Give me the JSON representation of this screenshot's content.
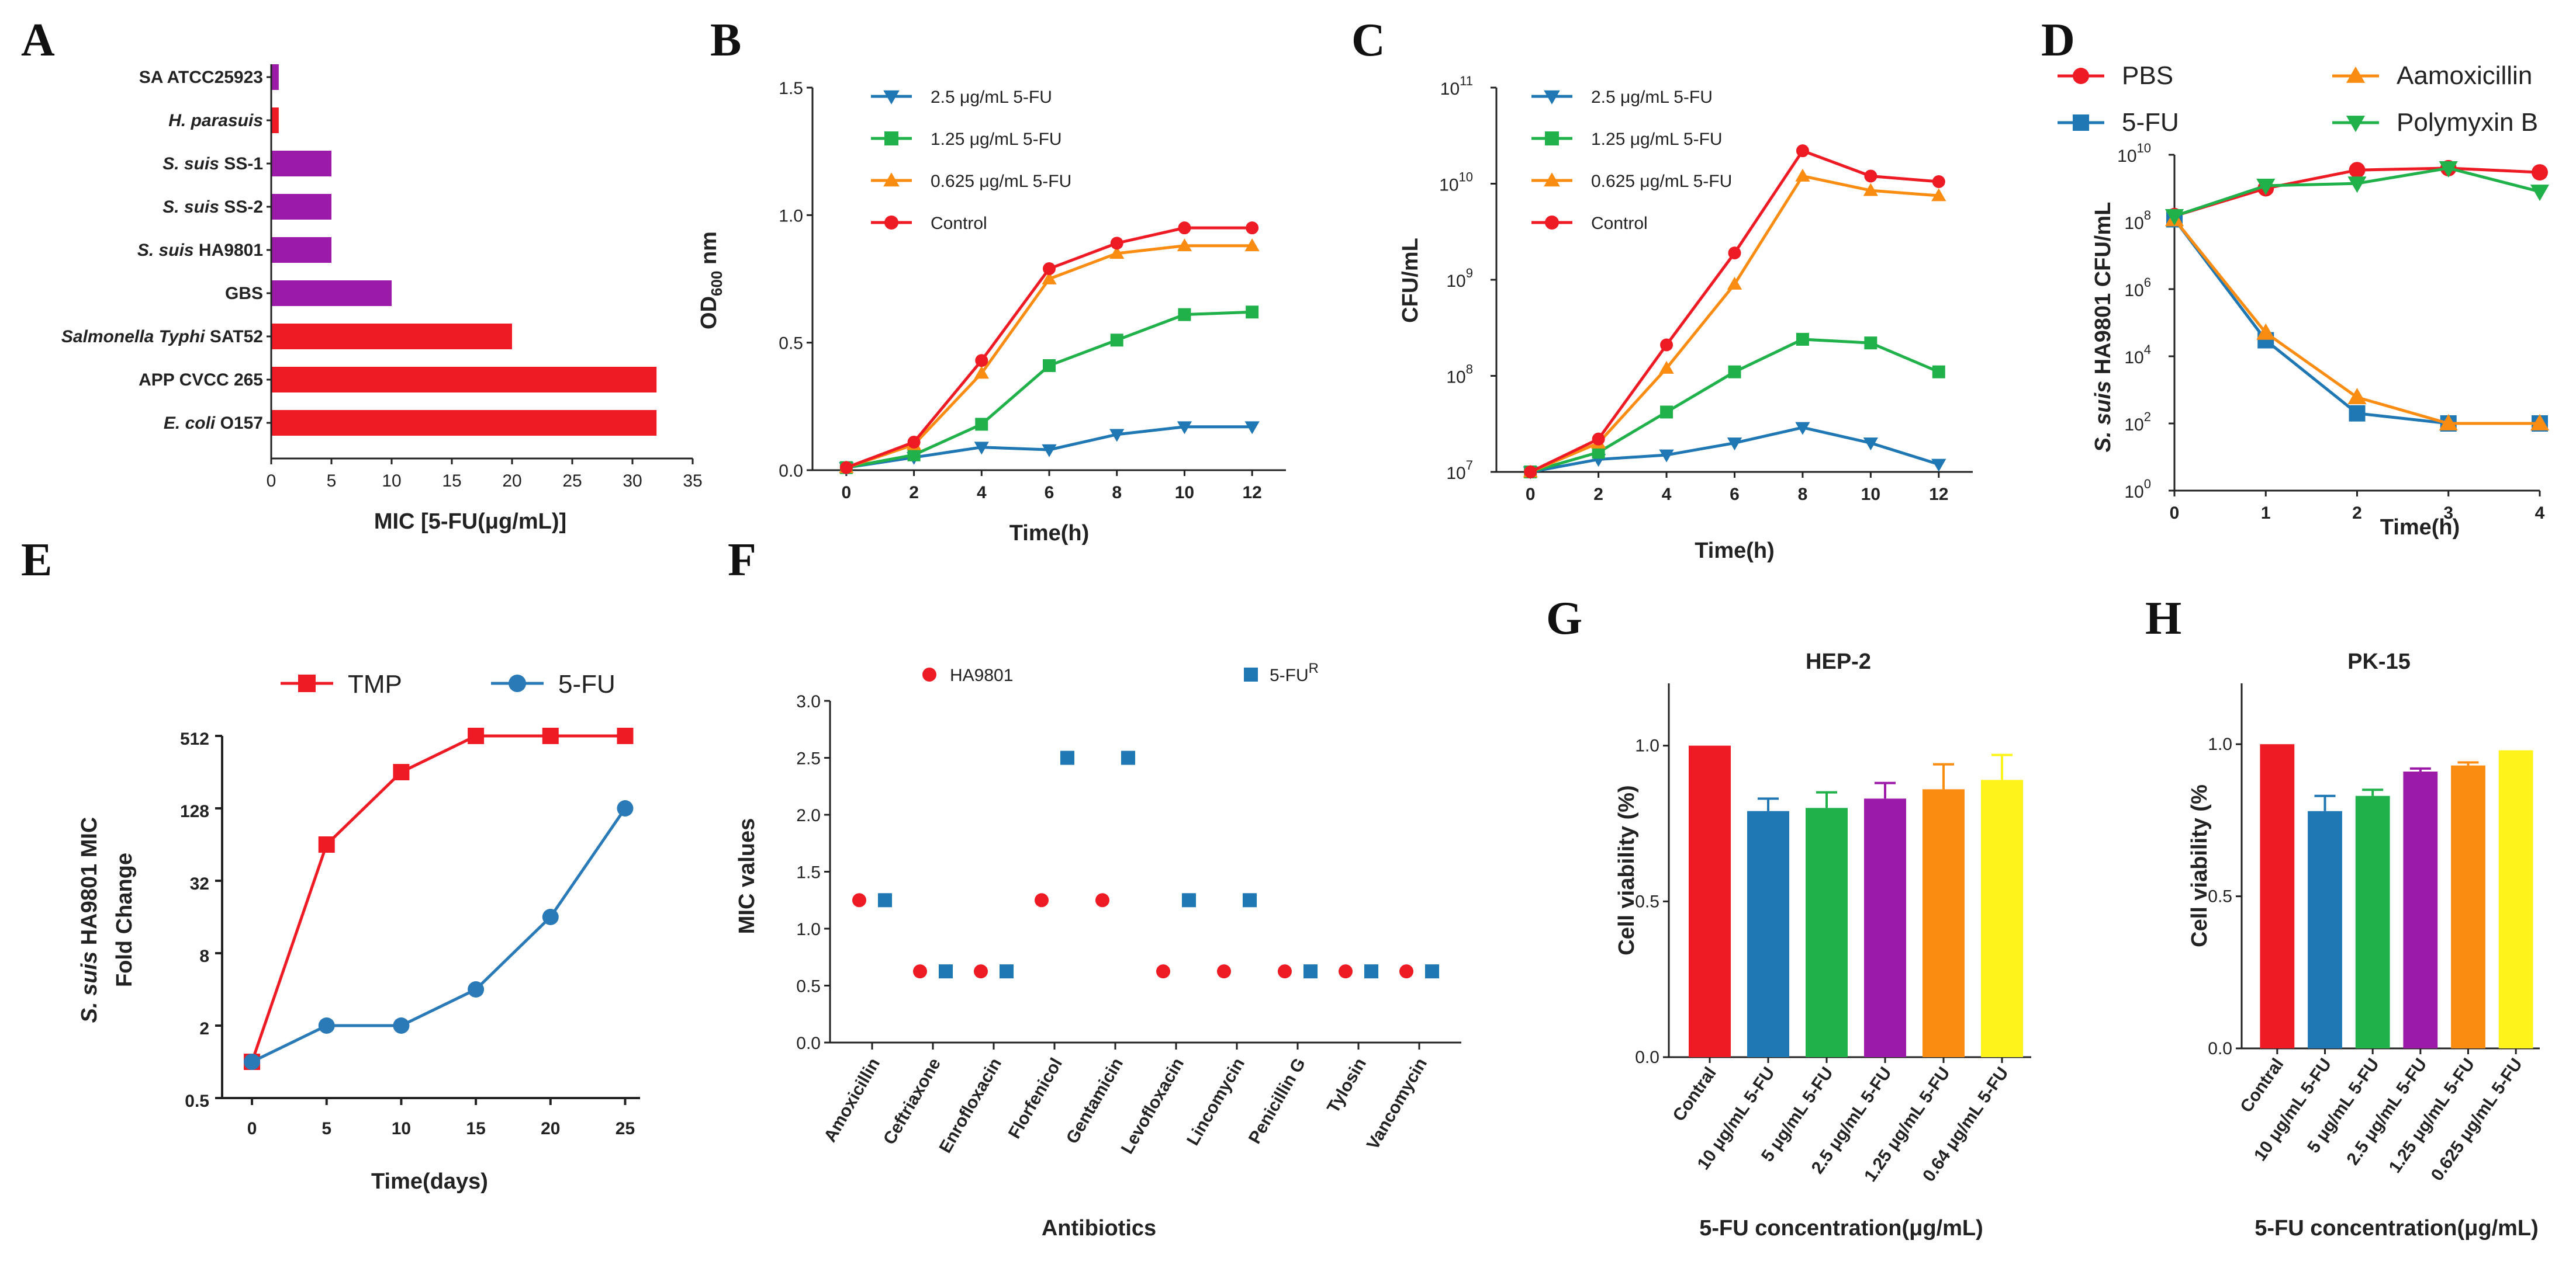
{
  "panel_labels": [
    "A",
    "B",
    "C",
    "D",
    "E",
    "F",
    "G",
    "H"
  ],
  "colors": {
    "red": "#ee1b24",
    "purple": "#9c1aa8",
    "blue": "#1f77b4",
    "green": "#20b14a",
    "orange": "#fb8c12",
    "yellow": "#fff31c",
    "sky": "#2a7ab8"
  },
  "chart_data": [
    {
      "id": "A",
      "type": "bar",
      "orientation": "horizontal",
      "categories": [
        {
          "parts": [
            {
              "t": "SA ATCC25923",
              "i": false
            }
          ],
          "value": 0.625,
          "color": "purple"
        },
        {
          "parts": [
            {
              "t": "H. parasuis",
              "i": true
            }
          ],
          "value": 0.625,
          "color": "red"
        },
        {
          "parts": [
            {
              "t": "S. suis",
              "i": true
            },
            {
              "t": " SS-1",
              "i": false
            }
          ],
          "value": 5,
          "color": "purple"
        },
        {
          "parts": [
            {
              "t": "S. suis",
              "i": true
            },
            {
              "t": " SS-2",
              "i": false
            }
          ],
          "value": 5,
          "color": "purple"
        },
        {
          "parts": [
            {
              "t": "S. suis",
              "i": true
            },
            {
              "t": " HA9801",
              "i": false
            }
          ],
          "value": 5,
          "color": "purple"
        },
        {
          "parts": [
            {
              "t": "GBS",
              "i": false
            }
          ],
          "value": 10,
          "color": "purple"
        },
        {
          "parts": [
            {
              "t": "Salmonella Typhi",
              "i": true
            },
            {
              "t": " SAT52",
              "i": false
            }
          ],
          "value": 20,
          "color": "red"
        },
        {
          "parts": [
            {
              "t": "APP CVCC 265",
              "i": false
            }
          ],
          "value": 32,
          "color": "red"
        },
        {
          "parts": [
            {
              "t": "E. coli",
              "i": true
            },
            {
              "t": " O157",
              "i": false
            }
          ],
          "value": 32,
          "color": "red"
        }
      ],
      "xlim": [
        0,
        35
      ],
      "xticks": [
        0,
        5,
        10,
        15,
        20,
        25,
        30,
        35
      ],
      "xlabel": "MIC [5-FU(μg/mL)]"
    },
    {
      "id": "B",
      "type": "line",
      "x": [
        0,
        2,
        4,
        6,
        8,
        10,
        12
      ],
      "xlim": [
        -1,
        13
      ],
      "xticks": [
        0,
        2,
        4,
        6,
        8,
        10,
        12
      ],
      "ylim": [
        0,
        1.5
      ],
      "yticks": [
        "0.0",
        "0.5",
        "1.0",
        "1.5"
      ],
      "ylabel_main": "OD",
      "ylabel_sub": "600",
      "ylabel_tail": " nm",
      "xlabel": "Time(h)",
      "series": [
        {
          "name": "2.5 μg/mL 5-FU",
          "color": "blue",
          "marker": "tri-down",
          "values": [
            0.01,
            0.05,
            0.09,
            0.08,
            0.14,
            0.17,
            0.17
          ]
        },
        {
          "name": "1.25 μg/mL 5-FU",
          "color": "green",
          "marker": "square",
          "values": [
            0.01,
            0.06,
            0.18,
            0.41,
            0.51,
            0.61,
            0.62
          ]
        },
        {
          "name": "0.625 μg/mL 5-FU",
          "color": "orange",
          "marker": "tri-up",
          "values": [
            0.01,
            0.1,
            0.38,
            0.75,
            0.85,
            0.88,
            0.88
          ]
        },
        {
          "name": "Control",
          "color": "red",
          "marker": "circle",
          "values": [
            0.01,
            0.11,
            0.43,
            0.79,
            0.89,
            0.95,
            0.95
          ]
        }
      ]
    },
    {
      "id": "C",
      "type": "line",
      "yscale": "log",
      "x": [
        0,
        2,
        4,
        6,
        8,
        10,
        12
      ],
      "xlim": [
        -1,
        13
      ],
      "xticks": [
        0,
        2,
        4,
        6,
        8,
        10,
        12
      ],
      "ylim": [
        7,
        11
      ],
      "ytick_base": "10",
      "yticks": [
        "7",
        "8",
        "9",
        "10",
        "11"
      ],
      "ylabel": "CFU/mL",
      "xlabel": "Time(h)",
      "series": [
        {
          "name": "2.5 μg/mL 5-FU",
          "color": "blue",
          "marker": "tri-down",
          "values": [
            10000000.0,
            13500000.0,
            15000000.0,
            20000000.0,
            29000000.0,
            20000000.0,
            12000000.0
          ]
        },
        {
          "name": "1.25 μg/mL 5-FU",
          "color": "green",
          "marker": "square",
          "values": [
            10000000.0,
            16000000.0,
            42000000.0,
            110000000.0,
            240000000.0,
            220000000.0,
            110000000.0
          ]
        },
        {
          "name": "0.625 μg/mL 5-FU",
          "color": "orange",
          "marker": "tri-up",
          "values": [
            10000000.0,
            20000000.0,
            120000000.0,
            900000000.0,
            12000000000.0,
            8500000000.0,
            7500000000.0
          ]
        },
        {
          "name": "Control",
          "color": "red",
          "marker": "circle",
          "values": [
            10000000.0,
            22000000.0,
            210000000.0,
            1900000000.0,
            22000000000.0,
            12000000000.0,
            10500000000.0
          ]
        }
      ]
    },
    {
      "id": "D",
      "type": "line",
      "yscale": "log",
      "x": [
        0,
        1,
        2,
        3,
        4
      ],
      "xlim": [
        0,
        4
      ],
      "xticks": [
        0,
        1,
        2,
        3,
        4
      ],
      "ylim": [
        0,
        10
      ],
      "ytick_base": "10",
      "yticks": [
        "0",
        "2",
        "4",
        "6",
        "8",
        "10"
      ],
      "ylabel_italic": "S. suis",
      "ylabel_tail": " HA9801 CFU/mL",
      "xlabel": "Time(h)",
      "series": [
        {
          "name": "PBS",
          "color": "red",
          "marker": "circle",
          "values": [
            150000000.0,
            1000000000.0,
            3500000000.0,
            4000000000.0,
            3000000000.0
          ]
        },
        {
          "name": "5-FU",
          "color": "blue",
          "marker": "square",
          "values": [
            120000000.0,
            30000.0,
            200.0,
            100.0,
            100.0
          ]
        },
        {
          "name": "Aamoxicillin",
          "color": "orange",
          "marker": "tri-up",
          "values": [
            120000000.0,
            50000.0,
            600.0,
            100.0,
            100.0
          ]
        },
        {
          "name": "Polymyxin B",
          "color": "green",
          "marker": "tri-down",
          "values": [
            150000000.0,
            1200000000.0,
            1400000000.0,
            4000000000.0,
            800000000.0
          ]
        }
      ]
    },
    {
      "id": "E",
      "type": "line",
      "yscale": "log2",
      "x": [
        0,
        5,
        10,
        15,
        20,
        25
      ],
      "xlim": [
        -2,
        26
      ],
      "xticks": [
        0,
        5,
        10,
        15,
        20,
        25
      ],
      "yticks": [
        "0.5",
        "2",
        "8",
        "32",
        "128",
        "512"
      ],
      "ylabel_line1_italic": "S. suis",
      "ylabel_line1_tail": " HA9801 MIC",
      "ylabel_line2": "Fold Change",
      "xlabel": "Time(days)",
      "series": [
        {
          "name": "TMP",
          "color": "red",
          "marker": "square",
          "values": [
            1,
            64,
            256,
            512,
            512,
            512
          ]
        },
        {
          "name": "5-FU",
          "color": "sky",
          "marker": "circle",
          "values": [
            1,
            2,
            2,
            4,
            16,
            128
          ]
        }
      ]
    },
    {
      "id": "F",
      "type": "scatter",
      "categories": [
        "Amoxicillin",
        "Ceftriaxone",
        "Enrofloxacin",
        "Florfenicol",
        "Gentamicin",
        "Levofloxacin",
        "Lincomycin",
        "Penicillin G",
        "Tylosin",
        "Vancomycin"
      ],
      "ylim": [
        0,
        3
      ],
      "yticks": [
        "0.0",
        "0.5",
        "1.0",
        "1.5",
        "2.0",
        "2.5",
        "3.0"
      ],
      "ylabel": "MIC values",
      "xlabel": "Antibiotics",
      "series": [
        {
          "name": "HA9801",
          "color": "red",
          "marker": "circle",
          "values": [
            1.25,
            0.625,
            0.625,
            1.25,
            1.25,
            0.625,
            0.625,
            0.625,
            0.625,
            0.625
          ]
        },
        {
          "name": "5-FU",
          "sup": "R",
          "color": "blue",
          "marker": "square",
          "values": [
            1.25,
            0.625,
            0.625,
            2.5,
            2.5,
            1.25,
            1.25,
            0.625,
            0.625,
            0.625
          ]
        }
      ]
    },
    {
      "id": "G",
      "type": "bar",
      "title": "HEP-2",
      "categories": [
        "Contral",
        "10 μg/mL 5-FU",
        "5 μg/mL 5-FU",
        "2.5 μg/mL 5-FU",
        "1.25 μg/mL 5-FU",
        "0.64 μg/mL 5-FU"
      ],
      "values": [
        1.0,
        0.79,
        0.8,
        0.83,
        0.86,
        0.89
      ],
      "errors": [
        0,
        0.04,
        0.05,
        0.05,
        0.08,
        0.08
      ],
      "colors": [
        "red",
        "blue",
        "green",
        "purple",
        "orange",
        "yellow"
      ],
      "ylim": [
        0,
        1.2
      ],
      "yticks": [
        "0.0",
        "0.5",
        "1.0"
      ],
      "ylabel": "Cell viability (%)",
      "xlabel": "5-FU concentration(μg/mL)"
    },
    {
      "id": "H",
      "type": "bar",
      "title": "PK-15",
      "categories": [
        "Contral",
        "10 μg/mL 5-FU",
        "5 μg/mL 5-FU",
        "2.5 μg/mL 5-FU",
        "1.25 μg/mL 5-FU",
        "0.625 μg/mL 5-FU"
      ],
      "values": [
        1.0,
        0.78,
        0.83,
        0.91,
        0.93,
        0.98
      ],
      "errors": [
        0,
        0.05,
        0.02,
        0.01,
        0.01,
        0
      ],
      "colors": [
        "red",
        "blue",
        "green",
        "purple",
        "orange",
        "yellow"
      ],
      "ylim": [
        0,
        1.2
      ],
      "yticks": [
        "0.0",
        "0.5",
        "1.0"
      ],
      "ylabel": "Cell viability (%",
      "xlabel": "5-FU concentration(μg/mL)"
    }
  ]
}
